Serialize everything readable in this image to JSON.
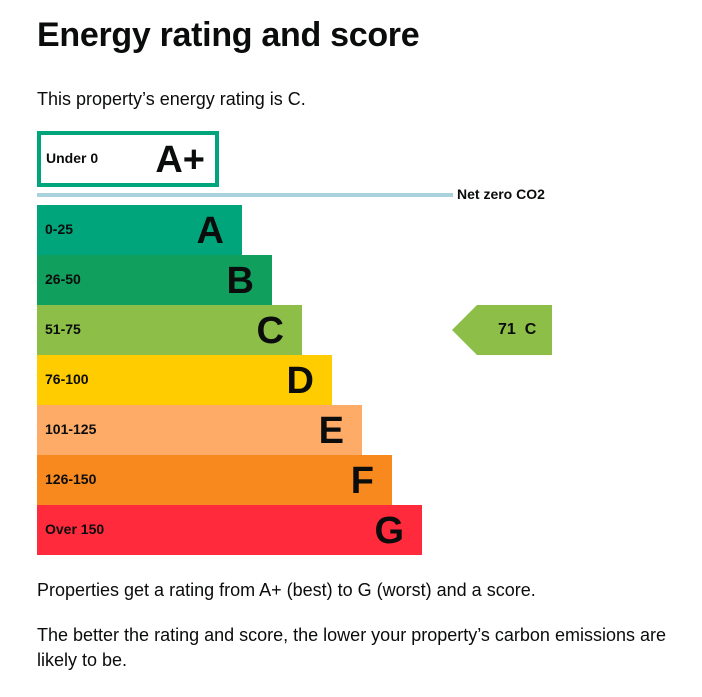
{
  "page": {
    "title": "Energy rating and score",
    "intro": "This property’s energy rating is C.",
    "explanation_1": "Properties get a rating from A+ (best) to G (worst) and a score.",
    "explanation_2": "The better the rating and score, the lower your property’s carbon emissions are likely to be."
  },
  "chart_data": {
    "type": "bar",
    "title": "",
    "top_band": {
      "range": "Under 0",
      "letter": "A+",
      "color": "#00a57c",
      "style": "outlined"
    },
    "net_zero": {
      "label": "Net zero CO2",
      "color": "#a9d2de"
    },
    "bands": [
      {
        "range": "0-25",
        "letter": "A",
        "color": "#00a57c",
        "level": 1
      },
      {
        "range": "26-50",
        "letter": "B",
        "color": "#109f5d",
        "level": 2
      },
      {
        "range": "51-75",
        "letter": "C",
        "color": "#8cbe48",
        "level": 3
      },
      {
        "range": "76-100",
        "letter": "D",
        "color": "#ffcc00",
        "level": 4
      },
      {
        "range": "101-125",
        "letter": "E",
        "color": "#fdab66",
        "level": 5
      },
      {
        "range": "126-150",
        "letter": "F",
        "color": "#f7891f",
        "level": 6
      },
      {
        "range": "Over 150",
        "letter": "G",
        "color": "#ff2a3c",
        "level": 7
      }
    ],
    "current": {
      "score": 71,
      "letter": "C",
      "text": "71  C",
      "color": "#8cbe48"
    }
  }
}
